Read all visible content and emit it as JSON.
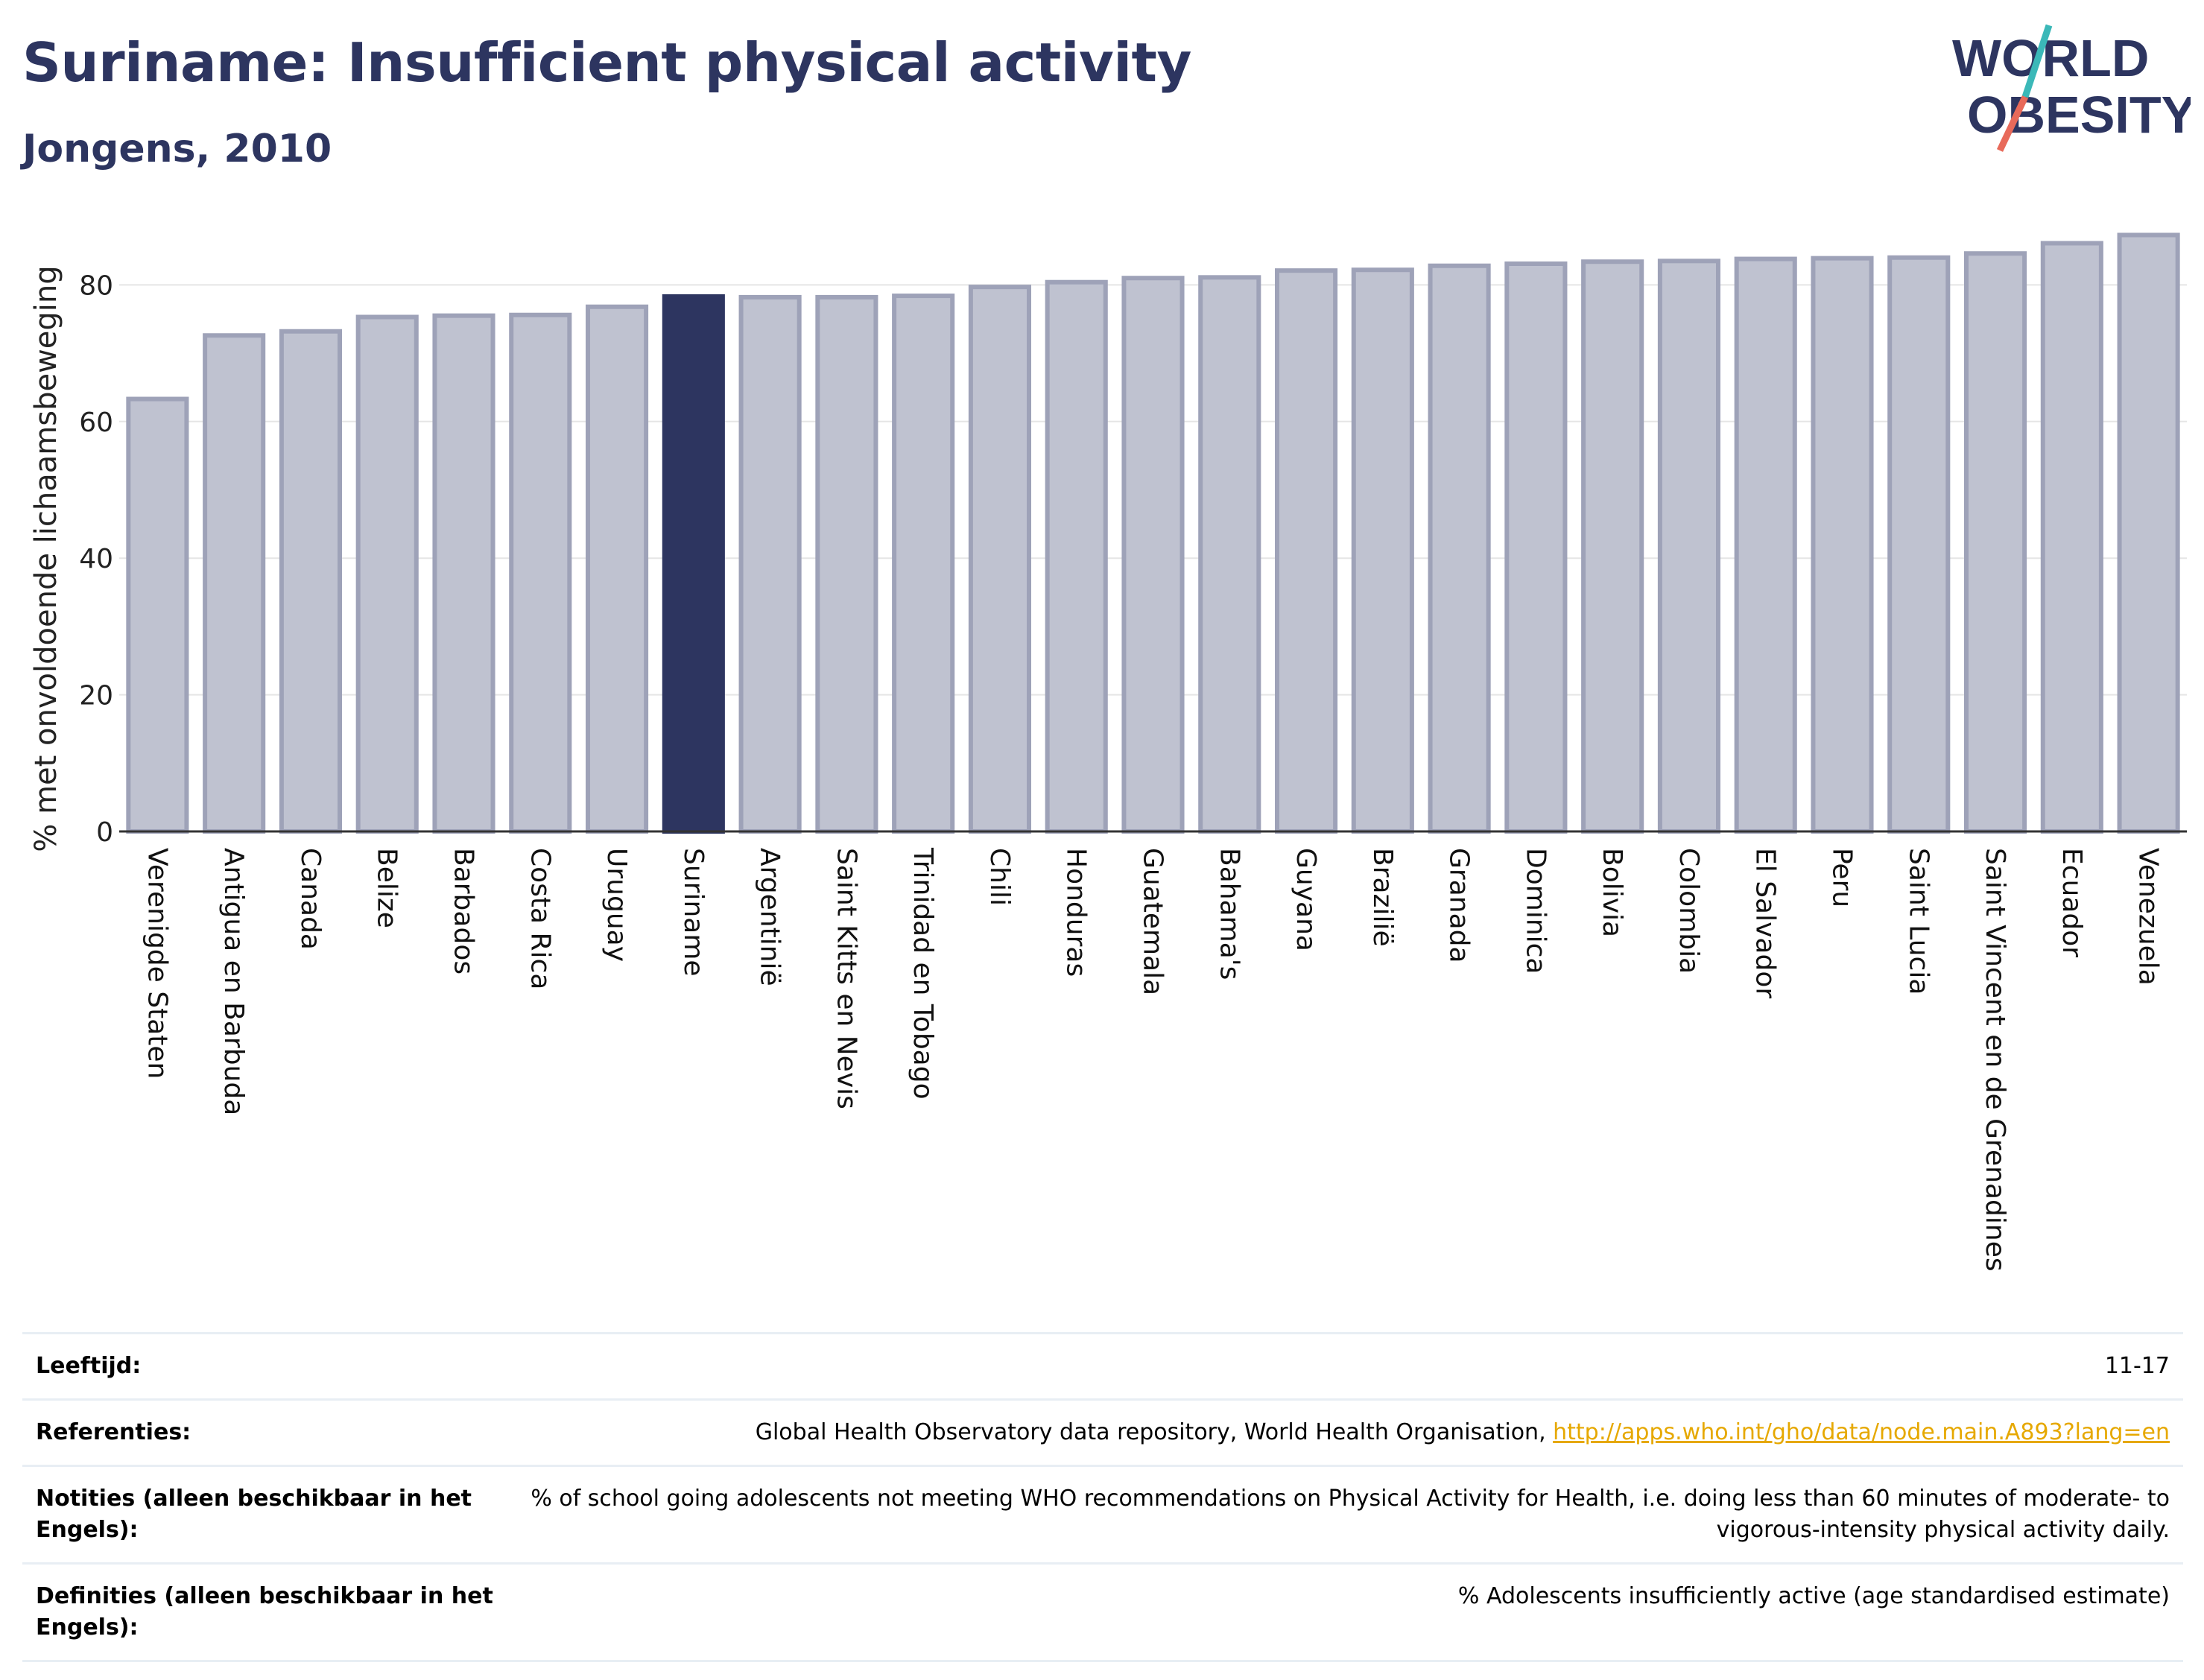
{
  "title": "Suriname: Insufficient physical activity",
  "subtitle": "Jongens, 2010",
  "logo": {
    "line1": "WORLD",
    "line2": "OBESITY"
  },
  "colors": {
    "title": "#2d3560",
    "bar": "#bfc2d0",
    "bar_border": "#9ea2b8",
    "highlight": "#2d3560",
    "grid": "#e5e5e5",
    "logo_teal": "#3bb8b8",
    "logo_coral": "#e86a5a"
  },
  "chart_data": {
    "type": "bar",
    "ylabel": "% met onvoldoende lichaamsbeweging",
    "ylim": [
      0,
      90
    ],
    "yticks": [
      0,
      20,
      40,
      60,
      80
    ],
    "highlight": "Suriname",
    "categories": [
      "Verenigde Staten",
      "Antigua en Barbuda",
      "Canada",
      "Belize",
      "Barbados",
      "Costa Rica",
      "Uruguay",
      "Suriname",
      "Argentinië",
      "Saint Kitts en Nevis",
      "Trinidad en Tobago",
      "Chili",
      "Honduras",
      "Guatemala",
      "Bahama's",
      "Guyana",
      "Brazilië",
      "Granada",
      "Dominica",
      "Bolivia",
      "Colombia",
      "El Salvador",
      "Peru",
      "Saint Lucia",
      "Saint Vincent en de Grenadines",
      "Ecuador",
      "Venezuela"
    ],
    "values": [
      63.3,
      72.6,
      73.2,
      75.3,
      75.5,
      75.6,
      76.8,
      78.3,
      78.2,
      78.2,
      78.4,
      79.7,
      80.4,
      81.0,
      81.1,
      82.1,
      82.2,
      82.8,
      83.1,
      83.4,
      83.5,
      83.8,
      83.9,
      84.0,
      84.6,
      86.1,
      87.3
    ]
  },
  "meta": [
    {
      "key": "Leeftijd:",
      "value": "11-17"
    },
    {
      "key": "Referenties:",
      "value": "Global Health Observatory data repository, World Health Organisation, ",
      "link": "http://apps.who.int/gho/data/node.main.A893?lang=en"
    },
    {
      "key": "Notities (alleen beschikbaar in het Engels):",
      "value": "% of school going adolescents not meeting WHO recommendations on Physical Activity for Health, i.e. doing less than 60 minutes of moderate- to vigorous-intensity physical activity daily."
    },
    {
      "key": "Definities (alleen beschikbaar in het Engels):",
      "value": "% Adolescents insufficiently active (age standardised estimate)"
    }
  ]
}
